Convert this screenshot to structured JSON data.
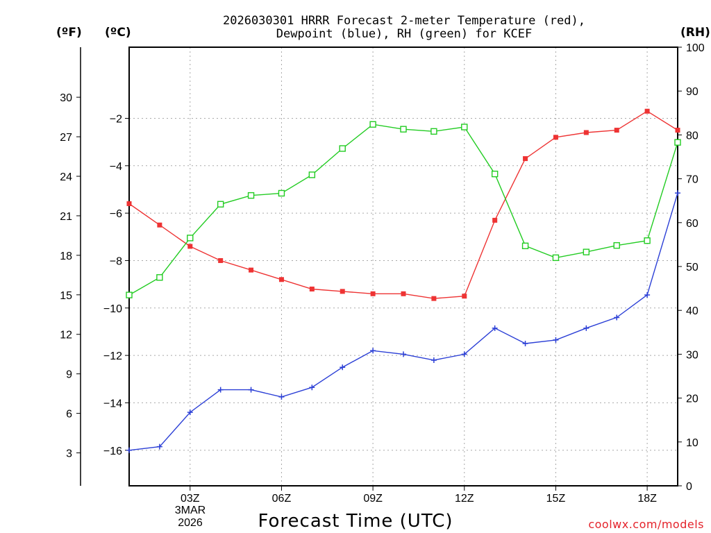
{
  "chart_data": {
    "type": "line",
    "title_line1": "2026030301 HRRR Forecast 2-meter Temperature (red),",
    "title_line2": "Dewpoint (blue), RH (green) for KCEF",
    "unit_f": "(ºF)",
    "unit_c": "(ºC)",
    "unit_rh": "(RH)",
    "xlabel": "Forecast Time (UTC)",
    "credit": "coolwx.com/models",
    "date_line1": "3MAR",
    "date_line2": "2026",
    "x_hours": [
      1,
      2,
      3,
      4,
      5,
      6,
      7,
      8,
      9,
      10,
      11,
      12,
      13,
      14,
      15,
      16,
      17,
      18,
      19
    ],
    "x_ticks": [
      {
        "hour": 3,
        "label": "03Z"
      },
      {
        "hour": 6,
        "label": "06Z"
      },
      {
        "hour": 9,
        "label": "09Z"
      },
      {
        "hour": 12,
        "label": "12Z"
      },
      {
        "hour": 15,
        "label": "15Z"
      },
      {
        "hour": 18,
        "label": "18Z"
      }
    ],
    "xlim": [
      1,
      19
    ],
    "ylim_c": [
      -17.5,
      1.0
    ],
    "yticks_c": [
      -2,
      -4,
      -6,
      -8,
      -10,
      -12,
      -14,
      -16
    ],
    "yticks_c_labels": [
      "−2",
      "−4",
      "−6",
      "−8",
      "−10",
      "−12",
      "−14",
      "−16"
    ],
    "yticks_f": [
      30,
      27,
      24,
      21,
      18,
      15,
      12,
      9,
      6,
      3
    ],
    "yticks_f_labels": [
      "30",
      "27",
      "24",
      "21",
      "18",
      "15",
      "12",
      "9",
      "6",
      "3"
    ],
    "ylim_rh": [
      0,
      100
    ],
    "yticks_rh": [
      100,
      90,
      80,
      70,
      60,
      50,
      40,
      30,
      20,
      10,
      0
    ],
    "yticks_rh_labels": [
      "100",
      "90",
      "80",
      "70",
      "60",
      "50",
      "40",
      "30",
      "20",
      "10",
      "0"
    ],
    "series": [
      {
        "name": "Temperature",
        "axis": "c",
        "color": "#ee3333",
        "marker": "filled-square",
        "values": [
          -5.6,
          -6.5,
          -7.4,
          -8.0,
          -8.4,
          -8.8,
          -9.2,
          -9.3,
          -9.4,
          -9.4,
          -9.6,
          -9.5,
          -6.3,
          -3.7,
          -2.8,
          -2.6,
          -2.5,
          -1.7,
          -2.5
        ]
      },
      {
        "name": "Dewpoint",
        "axis": "c",
        "color": "#2b3fd6",
        "marker": "plus",
        "values": [
          -16.0,
          -15.85,
          -14.4,
          -13.45,
          -13.45,
          -13.75,
          -13.35,
          -12.5,
          -11.8,
          -11.95,
          -12.2,
          -11.95,
          -10.85,
          -11.5,
          -11.35,
          -10.85,
          -10.4,
          -9.45,
          -5.15
        ]
      },
      {
        "name": "RH",
        "axis": "rh",
        "color": "#22cc22",
        "marker": "open-square",
        "values": [
          43.5,
          47.5,
          56.5,
          64.2,
          66.2,
          66.7,
          70.9,
          76.9,
          82.4,
          81.3,
          80.8,
          81.8,
          71.1,
          54.7,
          52.0,
          53.3,
          54.8,
          55.9,
          78.3
        ]
      }
    ]
  }
}
